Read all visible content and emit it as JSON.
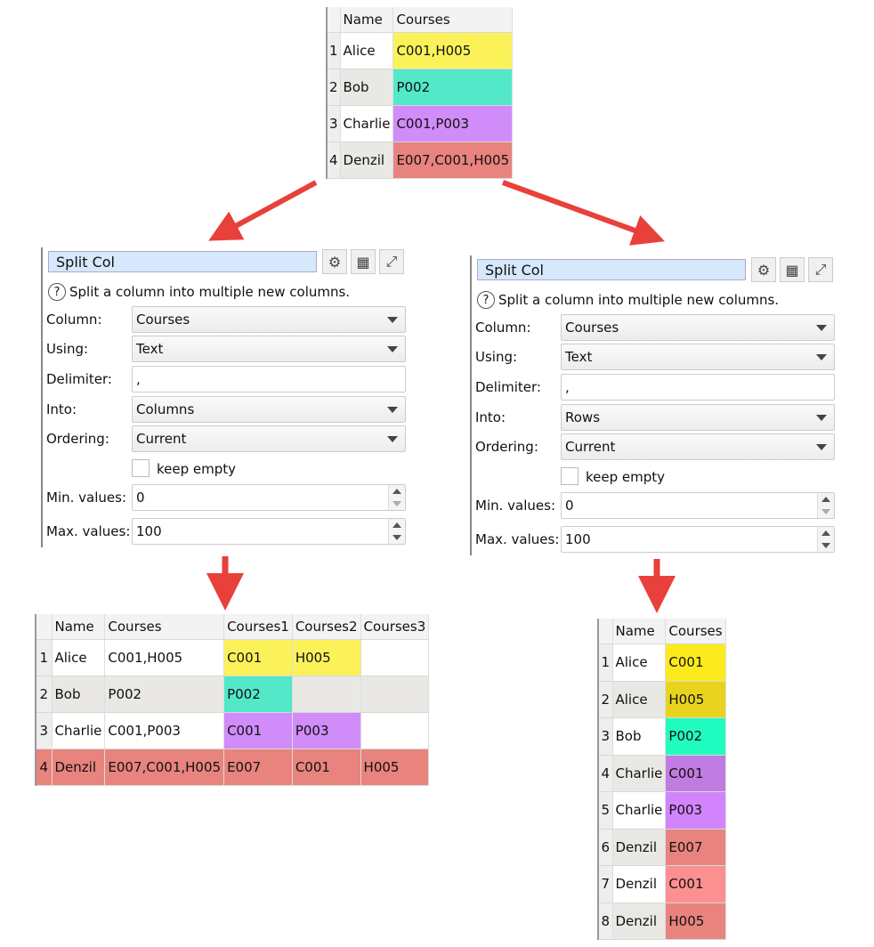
{
  "colors": {
    "yellow": "#fbf25a",
    "teal": "#52e8c8",
    "purple": "#d08cf8",
    "red": "#e8837e",
    "arrow": "#e8403a"
  },
  "input_table": {
    "headers": [
      "",
      "Name",
      "Courses"
    ],
    "rows": [
      {
        "n": "1",
        "name": "Alice",
        "courses": "C001,H005",
        "color": "#fbf25a"
      },
      {
        "n": "2",
        "name": "Bob",
        "courses": "P002",
        "color": "#52e8c8"
      },
      {
        "n": "3",
        "name": "Charlie",
        "courses": "C001,P003",
        "color": "#d08cf8"
      },
      {
        "n": "4",
        "name": "Denzil",
        "courses": "E007,C001,H005",
        "color": "#e8837e"
      }
    ]
  },
  "panels": [
    {
      "title": "Split Col",
      "help": "Split a column into multiple new columns.",
      "column_label": "Column:",
      "column": "Courses",
      "using_label": "Using:",
      "using": "Text",
      "delimiter_label": "Delimiter:",
      "delimiter": ",",
      "into_label": "Into:",
      "into": "Columns",
      "ordering_label": "Ordering:",
      "ordering": "Current",
      "keep_empty": "keep empty",
      "keep_empty_checked": false,
      "min_label": "Min. values:",
      "min": "0",
      "max_label": "Max. values:",
      "max": "100"
    },
    {
      "title": "Split Col",
      "help": "Split a column into multiple new columns.",
      "column_label": "Column:",
      "column": "Courses",
      "using_label": "Using:",
      "using": "Text",
      "delimiter_label": "Delimiter:",
      "delimiter": ",",
      "into_label": "Into:",
      "into": "Rows",
      "ordering_label": "Ordering:",
      "ordering": "Current",
      "keep_empty": "keep empty",
      "keep_empty_checked": false,
      "min_label": "Min. values:",
      "min": "0",
      "max_label": "Max. values:",
      "max": "100"
    }
  ],
  "icons": {
    "settings": "gears-icon",
    "table": "table-icon",
    "maximize": "maximize-icon",
    "help": "help-icon"
  },
  "columns_result": {
    "headers": [
      "",
      "Name",
      "Courses",
      "Courses1",
      "Courses2",
      "Courses3"
    ],
    "rows": [
      {
        "cells": [
          "1",
          "Alice",
          "C001,H005",
          "C001",
          "H005",
          ""
        ],
        "colors": [
          "",
          "",
          "",
          "#fbf25a",
          "#fbf25a",
          ""
        ]
      },
      {
        "cells": [
          "2",
          "Bob",
          "P002",
          "P002",
          "",
          ""
        ],
        "colors": [
          "",
          "",
          "",
          "#52e8c8",
          "",
          ""
        ]
      },
      {
        "cells": [
          "3",
          "Charlie",
          "C001,P003",
          "C001",
          "P003",
          ""
        ],
        "colors": [
          "",
          "",
          "",
          "#d08cf8",
          "#d08cf8",
          ""
        ]
      },
      {
        "cells": [
          "4",
          "Denzil",
          "E007,C001,H005",
          "E007",
          "C001",
          "H005"
        ],
        "colors": [
          "#e8837e",
          "#e8837e",
          "#e8837e",
          "#e8837e",
          "#e8837e",
          "#e8837e"
        ]
      }
    ]
  },
  "rows_result": {
    "headers": [
      "",
      "Name",
      "Courses"
    ],
    "rows": [
      {
        "n": "1",
        "name": "Alice",
        "courses": "C001",
        "color": "#fcea1c"
      },
      {
        "n": "2",
        "name": "Alice",
        "courses": "H005",
        "color": "#e8d41e"
      },
      {
        "n": "3",
        "name": "Bob",
        "courses": "P002",
        "color": "#20fcc0"
      },
      {
        "n": "4",
        "name": "Charlie",
        "courses": "C001",
        "color": "#c07ce0"
      },
      {
        "n": "5",
        "name": "Charlie",
        "courses": "P003",
        "color": "#d284fc"
      },
      {
        "n": "6",
        "name": "Denzil",
        "courses": "E007",
        "color": "#e8837e"
      },
      {
        "n": "7",
        "name": "Denzil",
        "courses": "C001",
        "color": "#fc9090"
      },
      {
        "n": "8",
        "name": "Denzil",
        "courses": "H005",
        "color": "#e8837e"
      }
    ]
  }
}
